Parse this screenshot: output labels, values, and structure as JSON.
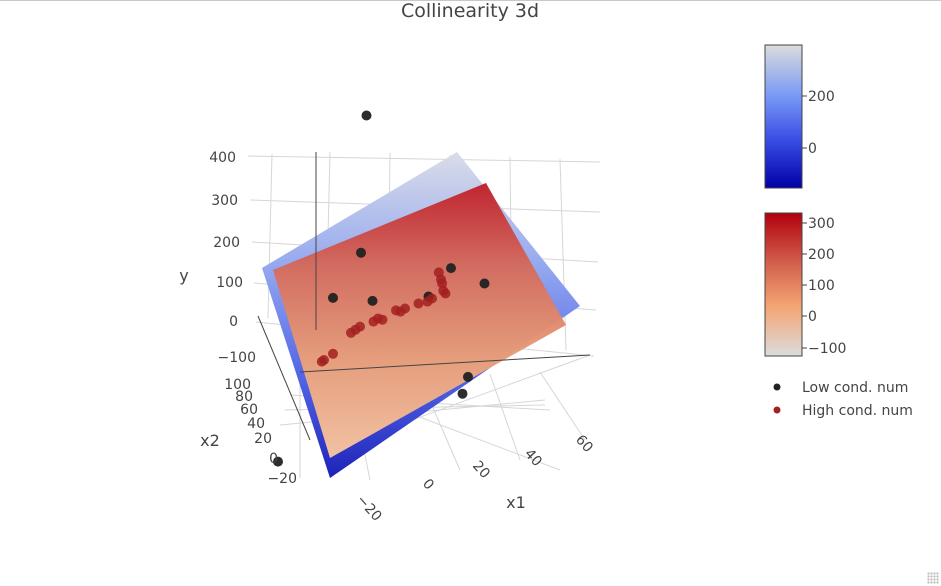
{
  "chart_data": {
    "type": "scatter3d",
    "title": "Collinearity 3d",
    "axes": {
      "x1": {
        "title": "x1",
        "ticks": [
          "−20",
          "0",
          "20",
          "40",
          "60"
        ]
      },
      "x2": {
        "title": "x2",
        "ticks": [
          "−20",
          "0",
          "20",
          "40",
          "60",
          "80",
          "100"
        ]
      },
      "y": {
        "title": "y",
        "ticks": [
          "−100",
          "0",
          "100",
          "200",
          "300",
          "400"
        ]
      }
    },
    "colorbars": [
      {
        "name": "surface-low",
        "colorscale": [
          "#0000a8",
          "#3c50e6",
          "#7a9bf5",
          "#dcdcdc"
        ],
        "range": [
          -150,
          390
        ],
        "ticks": [
          "0",
          "200"
        ]
      },
      {
        "name": "surface-high",
        "colorscale": [
          "#dcdcdc",
          "#f4a472",
          "#d2604c",
          "#b2000e"
        ],
        "range": [
          -140,
          330
        ],
        "ticks": [
          "−100",
          "0",
          "100",
          "200",
          "300"
        ]
      }
    ],
    "legend": {
      "placement": "right",
      "entries": [
        {
          "name": "Low cond. num",
          "color": "#222222"
        },
        {
          "name": "High cond. num",
          "color": "#a32020"
        }
      ]
    },
    "series": [
      {
        "name": "Low cond. num",
        "color": "#222222",
        "points": [
          [
            -10,
            -30,
            400
          ],
          [
            30,
            20,
            330
          ],
          [
            40,
            10,
            300
          ],
          [
            40,
            40,
            170
          ],
          [
            40,
            50,
            160
          ],
          [
            -20,
            80,
            -120
          ],
          [
            -20,
            -20,
            -30
          ],
          [
            -10,
            -20,
            110
          ],
          [
            0,
            10,
            120
          ],
          [
            20,
            10,
            200
          ]
        ]
      },
      {
        "name": "High cond. num",
        "color": "#a32020",
        "points": [
          [
            27,
            27,
            330
          ],
          [
            28,
            28,
            320
          ],
          [
            28,
            26,
            305
          ],
          [
            30,
            30,
            300
          ],
          [
            29,
            29,
            300
          ],
          [
            24,
            24,
            250
          ],
          [
            22,
            22,
            230
          ],
          [
            18,
            18,
            200
          ],
          [
            12,
            12,
            150
          ],
          [
            10,
            10,
            130
          ],
          [
            8,
            8,
            120
          ],
          [
            2,
            2,
            60
          ],
          [
            0,
            0,
            50
          ],
          [
            -2,
            -2,
            30
          ],
          [
            -8,
            -8,
            -20
          ],
          [
            -10,
            -10,
            -40
          ],
          [
            -12,
            -12,
            -60
          ],
          [
            -20,
            -20,
            -160
          ],
          [
            -24,
            -24,
            -200
          ],
          [
            -25,
            -25,
            -210
          ]
        ]
      }
    ]
  }
}
